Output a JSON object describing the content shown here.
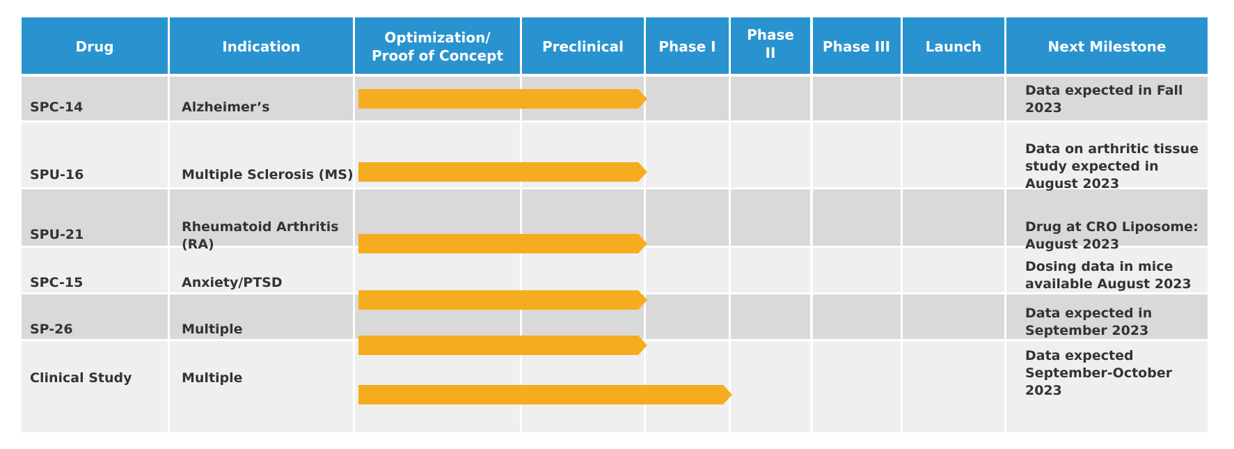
{
  "headers": {
    "drug": "Drug",
    "indication": "Indication",
    "optimization": "Optimization/\nProof  of Concept",
    "preclinical": "Preclinical",
    "phase1": "Phase I",
    "phase2": "Phase\nII",
    "phase3": "Phase III",
    "launch": "Launch",
    "milestone": "Next Milestone"
  },
  "stages": [
    "Optimization/Proof of Concept",
    "Preclinical",
    "Phase I",
    "Phase II",
    "Phase III",
    "Launch"
  ],
  "rows": [
    {
      "drug": "SPC-14",
      "indication": "Alzheimer’s",
      "progress_through_stage": "Preclinical",
      "milestone": "Data expected in Fall 2023"
    },
    {
      "drug": "SPU-16",
      "indication": "Multiple Sclerosis (MS)",
      "progress_through_stage": "Preclinical",
      "milestone": "Data on arthritic tissue study expected in August 2023"
    },
    {
      "drug": "SPU-21",
      "indication": "Rheumatoid Arthritis (RA)",
      "progress_through_stage": "Preclinical",
      "milestone": "Drug at CRO Liposome: August 2023"
    },
    {
      "drug": "SPC-15",
      "indication": "Anxiety/PTSD",
      "progress_through_stage": "Preclinical",
      "milestone": "Dosing data in mice available August 2023"
    },
    {
      "drug": "SP-26",
      "indication": "Multiple",
      "progress_through_stage": "Preclinical",
      "milestone": "Data expected in September 2023"
    },
    {
      "drug": "Clinical Study",
      "indication": "Multiple",
      "progress_through_stage": "Phase I",
      "milestone": "Data expected September-October 2023"
    }
  ],
  "colors": {
    "header_bg": "#2993cf",
    "header_text": "#ffffff",
    "row_dark": "#d9d9d9",
    "row_light": "#efefef",
    "bar": "#f5ac1f",
    "body_text": "#333333"
  }
}
